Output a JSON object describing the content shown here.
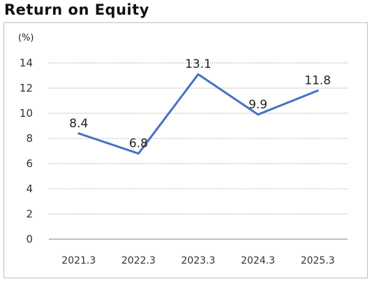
{
  "chart_data": {
    "type": "line",
    "title": "Return on Equity",
    "unit_label": "(%)",
    "categories": [
      "2021.3",
      "2022.3",
      "2023.3",
      "2024.3",
      "2025.3"
    ],
    "series": [
      {
        "values": [
          8.4,
          6.8,
          13.1,
          9.9,
          11.8
        ],
        "data_labels": [
          "8.4",
          "6.8",
          "13.1",
          "9.9",
          "11.8"
        ],
        "color": "#4472c4"
      }
    ],
    "ylim": [
      0,
      14
    ],
    "y_ticks": [
      "0",
      "2",
      "4",
      "6",
      "8",
      "10",
      "12",
      "14"
    ],
    "grid": true,
    "grid_style": "dotted",
    "legend": "none"
  }
}
